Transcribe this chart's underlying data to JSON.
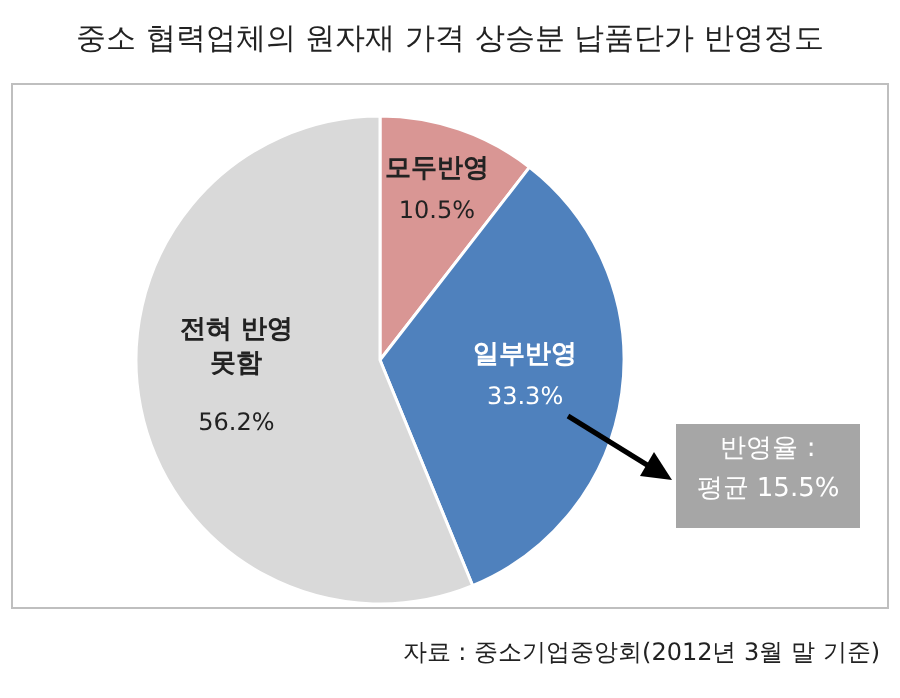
{
  "chart_data": {
    "type": "pie",
    "title": "중소 협력업체의 원자재 가격 상승분 납품단가 반영정도",
    "categories": [
      "모두반영",
      "일부반영",
      "전혀 반영\n못함"
    ],
    "values": [
      10.5,
      33.3,
      56.2
    ],
    "value_labels": [
      "10.5%",
      "33.3%",
      "56.2%"
    ],
    "colors": [
      "#d99694",
      "#4f81bd",
      "#d9d9d9"
    ],
    "annotations": [
      "반영율 :\n평균 15.5%",
      "자료 : 중소기업중앙회(2012년 3월 말 기준)"
    ]
  }
}
